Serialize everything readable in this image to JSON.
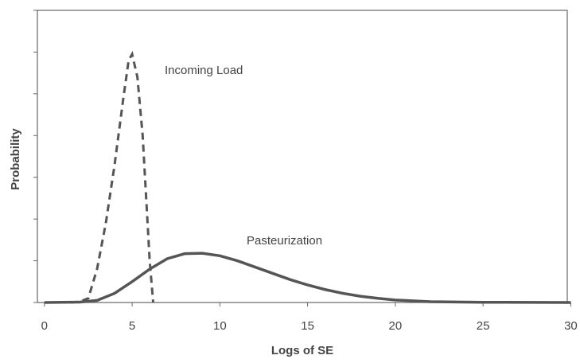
{
  "chart_data": {
    "type": "line",
    "xlabel": "Logs of SE",
    "ylabel": "Probability",
    "xlim": [
      -0.4,
      29.8
    ],
    "xticks": [
      0,
      5,
      10,
      15,
      20,
      25,
      30
    ],
    "ylim": [
      0,
      7
    ],
    "yticks": [
      0,
      1,
      2,
      3,
      4,
      5,
      6,
      7
    ],
    "series": [
      {
        "name": "Incoming Load",
        "color": "#555555",
        "dash": true,
        "x": [
          1.5,
          2,
          2.5,
          3,
          3.5,
          4,
          4.5,
          4.8,
          5,
          5.3,
          5.6,
          5.8,
          6,
          6.2
        ],
        "values": [
          0,
          0.02,
          0.1,
          0.8,
          1.9,
          3.3,
          4.9,
          5.8,
          5.95,
          5.4,
          4.0,
          2.5,
          1.0,
          0
        ]
      },
      {
        "name": "Pasteurization",
        "color": "#555555",
        "dash": false,
        "x": [
          0,
          2,
          3,
          4,
          5,
          6,
          7,
          8,
          9,
          10,
          11,
          12,
          13,
          14,
          15,
          16,
          17,
          18,
          19,
          20,
          22,
          25,
          30
        ],
        "values": [
          0,
          0.01,
          0.05,
          0.22,
          0.5,
          0.8,
          1.05,
          1.17,
          1.18,
          1.12,
          1.0,
          0.85,
          0.7,
          0.55,
          0.42,
          0.31,
          0.22,
          0.15,
          0.1,
          0.06,
          0.02,
          0.005,
          0
        ]
      }
    ]
  }
}
